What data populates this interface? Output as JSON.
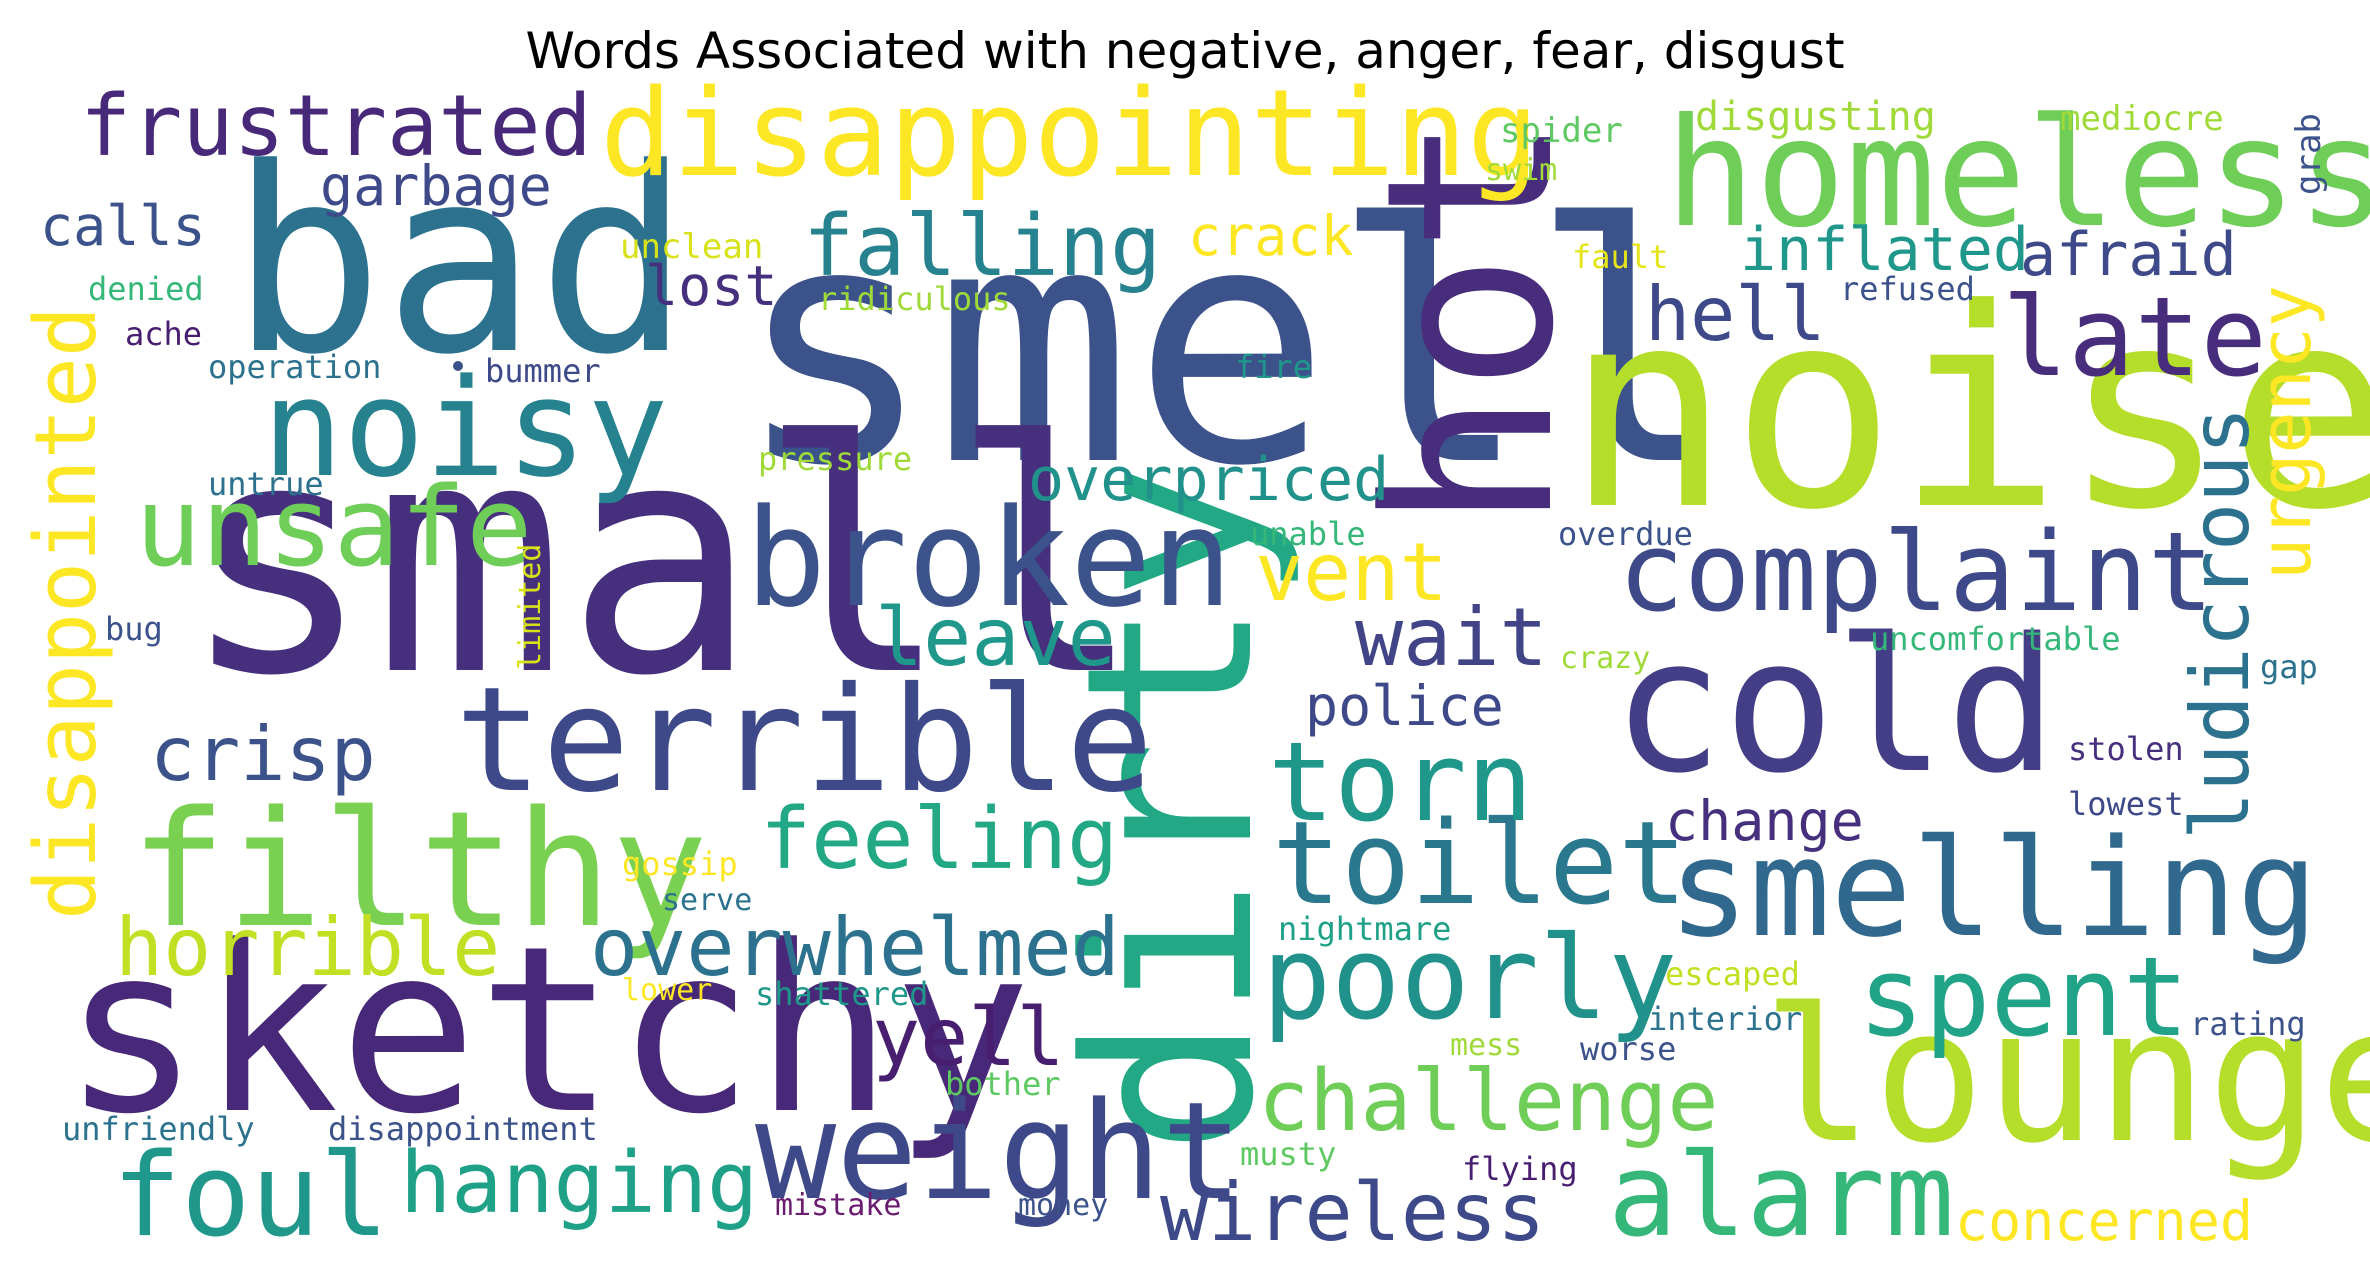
{
  "chart_data": {
    "type": "wordcloud",
    "title": "Words Associated with negative, anger, fear, disgust",
    "colormap": "viridis",
    "words": [
      {
        "text": "smell",
        "weight": 1.0
      },
      {
        "text": "small",
        "weight": 0.94
      },
      {
        "text": "noise",
        "weight": 0.93
      },
      {
        "text": "bad",
        "weight": 0.86
      },
      {
        "text": "hot",
        "weight": 0.8
      },
      {
        "text": "dirty",
        "weight": 0.8
      },
      {
        "text": "sketchy",
        "weight": 0.78
      },
      {
        "text": "cold",
        "weight": 0.72
      },
      {
        "text": "lounge",
        "weight": 0.7
      },
      {
        "text": "filthy",
        "weight": 0.65
      },
      {
        "text": "homeless",
        "weight": 0.6
      },
      {
        "text": "terrible",
        "weight": 0.6
      },
      {
        "text": "broken",
        "weight": 0.58
      },
      {
        "text": "noisy",
        "weight": 0.55
      },
      {
        "text": "weight",
        "weight": 0.55
      },
      {
        "text": "smelling",
        "weight": 0.55
      },
      {
        "text": "disappointing",
        "weight": 0.55
      },
      {
        "text": "poorly",
        "weight": 0.52
      },
      {
        "text": "toilet",
        "weight": 0.52
      },
      {
        "text": "foul",
        "weight": 0.5
      },
      {
        "text": "alarm",
        "weight": 0.5
      },
      {
        "text": "unsafe",
        "weight": 0.48
      },
      {
        "text": "complaint",
        "weight": 0.47
      },
      {
        "text": "spent",
        "weight": 0.47
      },
      {
        "text": "late",
        "weight": 0.45
      },
      {
        "text": "torn",
        "weight": 0.45
      },
      {
        "text": "frustrated",
        "weight": 0.4
      },
      {
        "text": "disappointed",
        "weight": 0.4
      },
      {
        "text": "falling",
        "weight": 0.4
      },
      {
        "text": "hanging",
        "weight": 0.4
      },
      {
        "text": "challenge",
        "weight": 0.4
      },
      {
        "text": "feeling",
        "weight": 0.4
      },
      {
        "text": "overwhelmed",
        "weight": 0.38
      },
      {
        "text": "wireless",
        "weight": 0.38
      },
      {
        "text": "horrible",
        "weight": 0.37
      },
      {
        "text": "ludicrous",
        "weight": 0.36
      },
      {
        "text": "yell",
        "weight": 0.36
      },
      {
        "text": "wait",
        "weight": 0.35
      },
      {
        "text": "crisp",
        "weight": 0.35
      },
      {
        "text": "hell",
        "weight": 0.35
      },
      {
        "text": "leave",
        "weight": 0.35
      },
      {
        "text": "vent",
        "weight": 0.35
      },
      {
        "text": "urgency",
        "weight": 0.33
      },
      {
        "text": "inflated",
        "weight": 0.3
      },
      {
        "text": "overpriced",
        "weight": 0.3
      },
      {
        "text": "afraid",
        "weight": 0.3
      },
      {
        "text": "police",
        "weight": 0.28
      },
      {
        "text": "concerned",
        "weight": 0.28
      },
      {
        "text": "calls",
        "weight": 0.27
      },
      {
        "text": "garbage",
        "weight": 0.27
      },
      {
        "text": "crack",
        "weight": 0.27
      },
      {
        "text": "lost",
        "weight": 0.26
      },
      {
        "text": "change",
        "weight": 0.26
      },
      {
        "text": "disgusting",
        "weight": 0.22
      },
      {
        "text": "spider",
        "weight": 0.2
      },
      {
        "text": "mediocre",
        "weight": 0.18
      },
      {
        "text": "grab",
        "weight": 0.18
      },
      {
        "text": "swim",
        "weight": 0.17
      },
      {
        "text": "unclean",
        "weight": 0.17
      },
      {
        "text": "fault",
        "weight": 0.17
      },
      {
        "text": "refused",
        "weight": 0.17
      },
      {
        "text": "ridiculous",
        "weight": 0.17
      },
      {
        "text": "denied",
        "weight": 0.17
      },
      {
        "text": "ache",
        "weight": 0.17
      },
      {
        "text": "operation",
        "weight": 0.17
      },
      {
        "text": "bummer",
        "weight": 0.17
      },
      {
        "text": "fire",
        "weight": 0.17
      },
      {
        "text": "pressure",
        "weight": 0.17
      },
      {
        "text": "untrue",
        "weight": 0.17
      },
      {
        "text": "unable",
        "weight": 0.17
      },
      {
        "text": "overdue",
        "weight": 0.17
      },
      {
        "text": "limited",
        "weight": 0.16
      },
      {
        "text": "bug",
        "weight": 0.17
      },
      {
        "text": "crazy",
        "weight": 0.17
      },
      {
        "text": "uncomfortable",
        "weight": 0.17
      },
      {
        "text": "gap",
        "weight": 0.17
      },
      {
        "text": "stolen",
        "weight": 0.17
      },
      {
        "text": "lowest",
        "weight": 0.17
      },
      {
        "text": "gossip",
        "weight": 0.17
      },
      {
        "text": "serve",
        "weight": 0.17
      },
      {
        "text": "nightmare",
        "weight": 0.17
      },
      {
        "text": "escaped",
        "weight": 0.17
      },
      {
        "text": "lower",
        "weight": 0.17
      },
      {
        "text": "shattered",
        "weight": 0.17
      },
      {
        "text": "interior",
        "weight": 0.17
      },
      {
        "text": "rating",
        "weight": 0.17
      },
      {
        "text": "mess",
        "weight": 0.17
      },
      {
        "text": "worse",
        "weight": 0.17
      },
      {
        "text": "bother",
        "weight": 0.17
      },
      {
        "text": "unfriendly",
        "weight": 0.17
      },
      {
        "text": "disappointment",
        "weight": 0.17
      },
      {
        "text": "musty",
        "weight": 0.17
      },
      {
        "text": "flying",
        "weight": 0.17
      },
      {
        "text": "mistake",
        "weight": 0.17
      },
      {
        "text": "money",
        "weight": 0.17
      }
    ]
  },
  "colors": {
    "background": "#ffffff",
    "title": "#000000"
  }
}
